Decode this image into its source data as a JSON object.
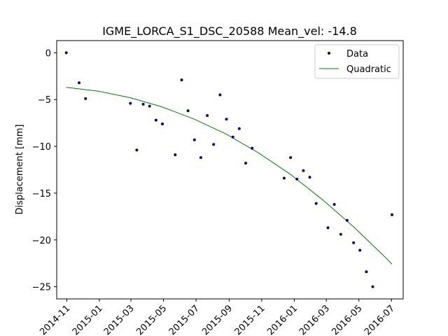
{
  "chart_data": {
    "type": "scatter",
    "title": "IGME_LORCA_S1_DSC_20588    Mean_vel: -14.8",
    "xlabel": "",
    "ylabel": "Displacement [mm]",
    "x_axis_type": "date",
    "xlim": [
      "2014-10-13",
      "2016-07-23"
    ],
    "ylim": [
      -26.3,
      1.3
    ],
    "x_ticks": [
      "2014-11",
      "2015-01",
      "2015-03",
      "2015-05",
      "2015-07",
      "2015-09",
      "2015-11",
      "2016-01",
      "2016-03",
      "2016-05",
      "2016-07"
    ],
    "x_tick_dates": [
      "2014-11-01",
      "2015-01-01",
      "2015-03-01",
      "2015-05-01",
      "2015-07-01",
      "2015-09-01",
      "2015-11-01",
      "2016-01-01",
      "2016-03-01",
      "2016-05-01",
      "2016-07-01"
    ],
    "y_ticks": [
      0,
      -5,
      -10,
      -15,
      -20,
      -25
    ],
    "legend": {
      "position": "top-right",
      "entries": [
        "Data",
        "Quadratic"
      ]
    },
    "grid": false,
    "series": [
      {
        "name": "Data",
        "kind": "scatter",
        "color": "#000080",
        "points": [
          {
            "x": "2014-10-31",
            "y": 0.0
          },
          {
            "x": "2014-11-24",
            "y": -3.2
          },
          {
            "x": "2014-12-06",
            "y": -4.9
          },
          {
            "x": "2015-02-28",
            "y": -5.4
          },
          {
            "x": "2015-03-12",
            "y": -10.4
          },
          {
            "x": "2015-03-24",
            "y": -5.5
          },
          {
            "x": "2015-04-05",
            "y": -5.7
          },
          {
            "x": "2015-04-17",
            "y": -7.2
          },
          {
            "x": "2015-04-29",
            "y": -7.6
          },
          {
            "x": "2015-05-23",
            "y": -10.9
          },
          {
            "x": "2015-06-04",
            "y": -2.9
          },
          {
            "x": "2015-06-16",
            "y": -6.2
          },
          {
            "x": "2015-06-28",
            "y": -9.3
          },
          {
            "x": "2015-07-10",
            "y": -11.2
          },
          {
            "x": "2015-07-22",
            "y": -6.7
          },
          {
            "x": "2015-08-03",
            "y": -9.8
          },
          {
            "x": "2015-08-15",
            "y": -4.5
          },
          {
            "x": "2015-08-27",
            "y": -7.1
          },
          {
            "x": "2015-09-08",
            "y": -9.0
          },
          {
            "x": "2015-09-20",
            "y": -8.1
          },
          {
            "x": "2015-10-02",
            "y": -11.8
          },
          {
            "x": "2015-10-14",
            "y": -10.2
          },
          {
            "x": "2015-12-13",
            "y": -13.4
          },
          {
            "x": "2015-12-25",
            "y": -11.2
          },
          {
            "x": "2016-01-06",
            "y": -13.5
          },
          {
            "x": "2016-01-18",
            "y": -12.6
          },
          {
            "x": "2016-01-30",
            "y": -13.3
          },
          {
            "x": "2016-02-11",
            "y": -16.1
          },
          {
            "x": "2016-03-04",
            "y": -18.7
          },
          {
            "x": "2016-03-16",
            "y": -16.2
          },
          {
            "x": "2016-03-28",
            "y": -19.4
          },
          {
            "x": "2016-04-09",
            "y": -17.9
          },
          {
            "x": "2016-04-21",
            "y": -20.3
          },
          {
            "x": "2016-05-03",
            "y": -21.1
          },
          {
            "x": "2016-05-15",
            "y": -23.4
          },
          {
            "x": "2016-05-27",
            "y": -25.0
          },
          {
            "x": "2016-07-02",
            "y": -17.3
          }
        ]
      },
      {
        "name": "Quadratic",
        "kind": "line",
        "color": "#008000",
        "points": [
          {
            "x": "2014-10-31",
            "y": -3.7
          },
          {
            "x": "2014-12-30",
            "y": -4.1
          },
          {
            "x": "2015-02-28",
            "y": -4.8
          },
          {
            "x": "2015-04-29",
            "y": -5.8
          },
          {
            "x": "2015-06-28",
            "y": -7.1
          },
          {
            "x": "2015-08-27",
            "y": -8.7
          },
          {
            "x": "2015-10-26",
            "y": -10.7
          },
          {
            "x": "2015-12-25",
            "y": -13.0
          },
          {
            "x": "2016-02-23",
            "y": -15.7
          },
          {
            "x": "2016-04-23",
            "y": -18.7
          },
          {
            "x": "2016-06-22",
            "y": -22.0
          },
          {
            "x": "2016-07-02",
            "y": -22.6
          }
        ]
      }
    ]
  }
}
